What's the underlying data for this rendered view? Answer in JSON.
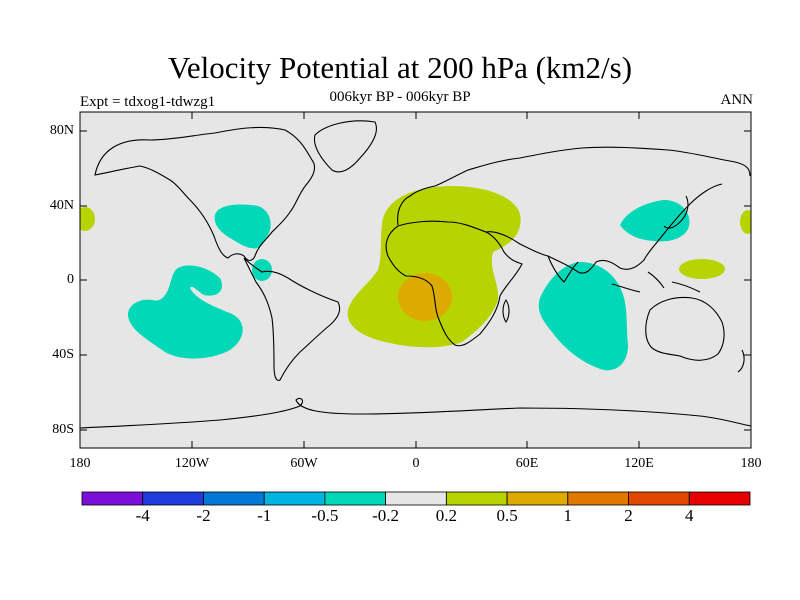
{
  "title": "Velocity Potential at 200 hPa (km2/s)",
  "subtitle": "006kyr BP - 006kyr BP",
  "left_label": "Expt = tdxog1-tdwzg1",
  "right_label": "ANN",
  "lat_ticks": [
    "80N",
    "40N",
    "0",
    "40S",
    "80S"
  ],
  "lon_ticks": [
    "180",
    "120W",
    "60W",
    "0",
    "60E",
    "120E",
    "180"
  ],
  "colors": {
    "land_bg": "#e6e6e6",
    "coast": "#000000",
    "pos_light": "#b8d400",
    "pos_mid": "#dcaa00",
    "neg_light": "#00d8b8"
  },
  "colorbar": {
    "colors": [
      "#7a10d8",
      "#1e3cdc",
      "#0078d8",
      "#00b4e0",
      "#00d8b8",
      "#e6e6e6",
      "#b8d400",
      "#dcaa00",
      "#e07800",
      "#e04800",
      "#e60000"
    ],
    "labels": [
      "-4",
      "-2",
      "-1",
      "-0.5",
      "-0.2",
      "0.2",
      "0.5",
      "1",
      "2",
      "4"
    ]
  }
}
